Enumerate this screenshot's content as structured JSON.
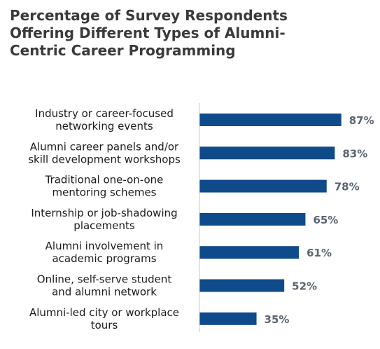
{
  "chart_data": {
    "type": "bar",
    "orientation": "horizontal",
    "title": "Percentage of Survey Respondents Offering Different Types of Alumni-Centric Career Programming",
    "title_lines": [
      "Percentage of Survey Respondents",
      "Offering Different Types of Alumni-",
      "Centric Career Programming"
    ],
    "categories": [
      [
        "Industry or career-focused",
        "networking events"
      ],
      [
        "Alumni career panels and/or",
        "skill development workshops"
      ],
      [
        "Traditional one-on-one",
        "mentoring schemes"
      ],
      [
        "Internship or job-shadowing",
        "placements"
      ],
      [
        "Alumni involvement in",
        "academic programs"
      ],
      [
        "Online, self-serve student",
        "and alumni network"
      ],
      [
        "Alumni-led city or workplace",
        "tours"
      ]
    ],
    "values": [
      87,
      83,
      78,
      65,
      61,
      52,
      35
    ],
    "value_labels": [
      "87%",
      "83%",
      "78%",
      "65%",
      "61%",
      "52%",
      "35%"
    ],
    "xlim": [
      0,
      100
    ],
    "grid": false,
    "legend": "none",
    "colors": {
      "bar": "#0f4a8a",
      "value_label": "#5a6472",
      "axis": "#c8c8c8",
      "title": "#3a3a3a"
    }
  }
}
